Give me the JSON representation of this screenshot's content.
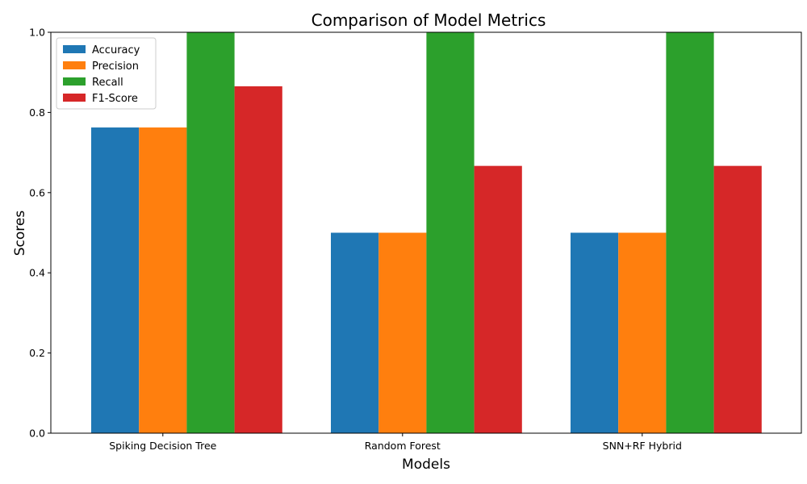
{
  "chart_data": {
    "type": "bar",
    "title": "Comparison of Model Metrics",
    "xlabel": "Models",
    "ylabel": "Scores",
    "ylim": [
      0,
      1
    ],
    "yticks": [
      0.0,
      0.2,
      0.4,
      0.6,
      0.8,
      1.0
    ],
    "ytick_labels": [
      "0.0",
      "0.2",
      "0.4",
      "0.6",
      "0.8",
      "1.0"
    ],
    "categories": [
      "Spiking Decision Tree",
      "Random Forest",
      "SNN+RF Hybrid"
    ],
    "legend_position": "top-left",
    "series": [
      {
        "name": "Accuracy",
        "color": "#1f77b4",
        "values": [
          0.7625,
          0.5,
          0.5
        ]
      },
      {
        "name": "Precision",
        "color": "#ff7f0e",
        "values": [
          0.7625,
          0.5,
          0.5
        ]
      },
      {
        "name": "Recall",
        "color": "#2ca02c",
        "values": [
          1.0,
          1.0,
          1.0
        ]
      },
      {
        "name": "F1-Score",
        "color": "#d62728",
        "values": [
          0.8652,
          0.6667,
          0.6667
        ]
      }
    ]
  }
}
